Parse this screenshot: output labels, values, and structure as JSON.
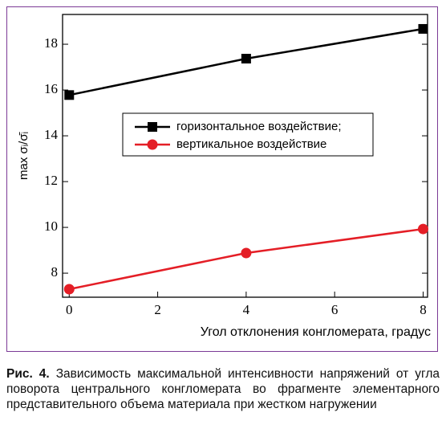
{
  "chart_data": {
    "type": "line",
    "x_label": "Угол отклонения конгломерата, градус",
    "y_label": "max σᵢ/σ̄ᵢ",
    "xlim": [
      -0.15,
      8.1
    ],
    "xticks": [
      0,
      2,
      4,
      6,
      8
    ],
    "ylim": [
      6.95,
      19.3
    ],
    "yticks": [
      8,
      10,
      12,
      14,
      16,
      18
    ],
    "legend_position": "upper center",
    "series": [
      {
        "name": "горизонтальное воздействие;",
        "color": "#000000",
        "marker": "square",
        "x": [
          0,
          4,
          8
        ],
        "values": [
          15.78,
          17.37,
          18.67
        ]
      },
      {
        "name": "вертикальное воздействие",
        "color": "#e41e26",
        "marker": "circle",
        "x": [
          0,
          4,
          8
        ],
        "values": [
          7.3,
          8.88,
          9.93
        ]
      }
    ]
  },
  "caption": {
    "label": "Рис. 4.",
    "text": "Зависимость максимальной интенсивности напряжений от угла поворота центрального конгломерата во фрагменте элементарного представительного объема материала при жестком нагружении"
  }
}
